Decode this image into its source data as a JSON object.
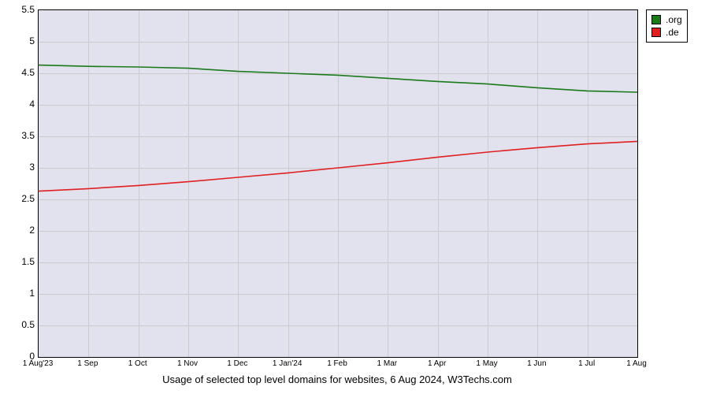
{
  "chart": {
    "type": "line",
    "caption": "Usage of selected top level domains for websites, 6 Aug 2024, W3Techs.com",
    "plot_background": "#e2e2ee",
    "grid_color": "#cccccc",
    "border_color": "#000000",
    "page_background": "#ffffff",
    "caption_fontsize": 13,
    "y_axis": {
      "min": 0,
      "max": 5.5,
      "tick_step": 0.5,
      "ticks": [
        0,
        0.5,
        1,
        1.5,
        2,
        2.5,
        3,
        3.5,
        4,
        4.5,
        5,
        5.5
      ],
      "tick_fontsize": 12
    },
    "x_axis": {
      "labels": [
        "1 Aug'23",
        "1 Sep",
        "1 Oct",
        "1 Nov",
        "1 Dec",
        "1 Jan'24",
        "1 Feb",
        "1 Mar",
        "1 Apr",
        "1 May",
        "1 Jun",
        "1 Jul",
        "1 Aug"
      ],
      "tick_fontsize": 10
    },
    "series": [
      {
        "name": ".org",
        "color": "#1a7a1a",
        "line_width": 1.6,
        "values": [
          4.63,
          4.61,
          4.6,
          4.58,
          4.53,
          4.5,
          4.47,
          4.42,
          4.37,
          4.33,
          4.27,
          4.22,
          4.2
        ]
      },
      {
        "name": ".de",
        "color": "#e02020",
        "line_width": 1.6,
        "values": [
          2.63,
          2.67,
          2.72,
          2.78,
          2.85,
          2.92,
          3.0,
          3.08,
          3.17,
          3.25,
          3.32,
          3.38,
          3.42
        ]
      }
    ],
    "legend": {
      "border_color": "#000000",
      "background": "#ffffff",
      "fontsize": 12
    }
  }
}
